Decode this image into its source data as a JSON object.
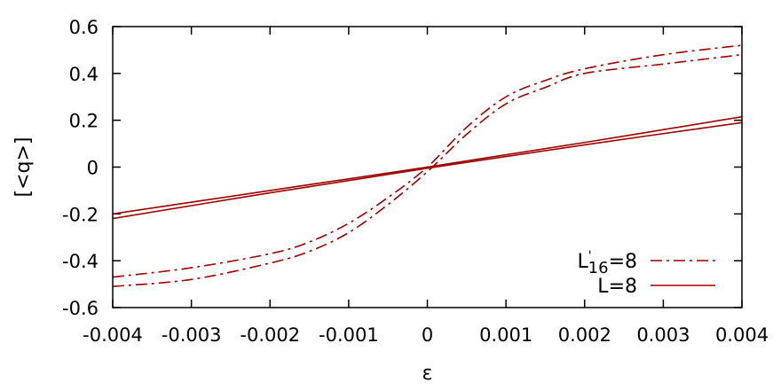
{
  "chart_data": {
    "type": "line",
    "xlabel": "ε",
    "ylabel": "[<q>]",
    "xlim": [
      -0.004,
      0.004
    ],
    "ylim": [
      -0.6,
      0.6
    ],
    "x_ticks": [
      "-0.004",
      "-0.003",
      "-0.002",
      "-0.001",
      "0",
      "0.001",
      "0.002",
      "0.003",
      "0.004"
    ],
    "y_ticks": [
      "0.6",
      "0.4",
      "0.2",
      "0",
      "-0.2",
      "-0.4",
      "-0.6"
    ],
    "legend_position": "bottom-right",
    "line_color": "#a00000",
    "series": [
      {
        "name": "L'16=8",
        "legend": {
          "main": "L",
          "sup": "'",
          "sub": "16",
          "rest": "=8"
        },
        "style": "dash-dot",
        "branch": "upper",
        "x": [
          -0.004,
          -0.003,
          -0.002,
          -0.0015,
          -0.001,
          -0.0005,
          0,
          0.0005,
          0.001,
          0.0015,
          0.002,
          0.003,
          0.004
        ],
        "y": [
          -0.47,
          -0.43,
          -0.37,
          -0.32,
          -0.24,
          -0.13,
          0.0,
          0.17,
          0.3,
          0.37,
          0.42,
          0.48,
          0.52
        ]
      },
      {
        "name": "L'16=8",
        "style": "dash-dot",
        "branch": "lower",
        "x": [
          -0.004,
          -0.003,
          -0.002,
          -0.0015,
          -0.001,
          -0.0005,
          0,
          0.0005,
          0.001,
          0.0015,
          0.002,
          0.003,
          0.004
        ],
        "y": [
          -0.51,
          -0.48,
          -0.41,
          -0.36,
          -0.28,
          -0.16,
          -0.02,
          0.14,
          0.27,
          0.34,
          0.4,
          0.44,
          0.48
        ]
      },
      {
        "name": "L=8",
        "legend": {
          "main": "L",
          "sup": "",
          "sub": "",
          "rest": "=8"
        },
        "style": "solid",
        "branch": "upper",
        "x": [
          -0.004,
          -0.002,
          0,
          0.002,
          0.004
        ],
        "y": [
          -0.2,
          -0.1,
          0.0,
          0.105,
          0.215
        ]
      },
      {
        "name": "L=8",
        "style": "solid",
        "branch": "lower",
        "x": [
          -0.004,
          -0.002,
          0,
          0.002,
          0.004
        ],
        "y": [
          -0.22,
          -0.11,
          -0.005,
          0.095,
          0.19
        ]
      }
    ]
  }
}
